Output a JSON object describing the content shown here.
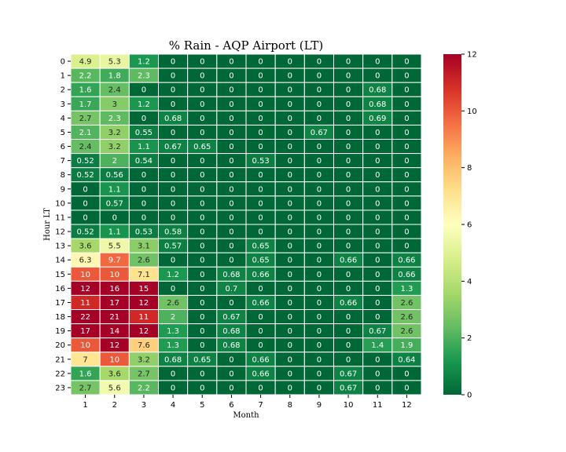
{
  "chart_data": {
    "type": "heatmap",
    "title": "% Rain - AQP Airport (LT)",
    "xlabel": "Month",
    "ylabel": "Hour LT",
    "x_categories": [
      "1",
      "2",
      "3",
      "4",
      "5",
      "6",
      "7",
      "8",
      "9",
      "10",
      "11",
      "12"
    ],
    "y_categories": [
      "0",
      "1",
      "2",
      "3",
      "4",
      "5",
      "6",
      "7",
      "8",
      "9",
      "10",
      "11",
      "12",
      "13",
      "14",
      "15",
      "16",
      "17",
      "18",
      "19",
      "20",
      "21",
      "22",
      "23"
    ],
    "labels": [
      [
        "4.9",
        "5.3",
        "1.2",
        "0",
        "0",
        "0",
        "0",
        "0",
        "0",
        "0",
        "0",
        "0"
      ],
      [
        "2.2",
        "1.8",
        "2.3",
        "0",
        "0",
        "0",
        "0",
        "0",
        "0",
        "0",
        "0",
        "0"
      ],
      [
        "1.6",
        "2.4",
        "0",
        "0",
        "0",
        "0",
        "0",
        "0",
        "0",
        "0",
        "0.68",
        "0"
      ],
      [
        "1.7",
        "3",
        "1.2",
        "0",
        "0",
        "0",
        "0",
        "0",
        "0",
        "0",
        "0.68",
        "0"
      ],
      [
        "2.7",
        "2.3",
        "0",
        "0.68",
        "0",
        "0",
        "0",
        "0",
        "0",
        "0",
        "0.69",
        "0"
      ],
      [
        "2.1",
        "3.2",
        "0.55",
        "0",
        "0",
        "0",
        "0",
        "0",
        "0.67",
        "0",
        "0",
        "0"
      ],
      [
        "2.4",
        "3.2",
        "1.1",
        "0.67",
        "0.65",
        "0",
        "0",
        "0",
        "0",
        "0",
        "0",
        "0"
      ],
      [
        "0.52",
        "2",
        "0.54",
        "0",
        "0",
        "0",
        "0.53",
        "0",
        "0",
        "0",
        "0",
        "0"
      ],
      [
        "0.52",
        "0.56",
        "0",
        "0",
        "0",
        "0",
        "0",
        "0",
        "0",
        "0",
        "0",
        "0"
      ],
      [
        "0",
        "1.1",
        "0",
        "0",
        "0",
        "0",
        "0",
        "0",
        "0",
        "0",
        "0",
        "0"
      ],
      [
        "0",
        "0.57",
        "0",
        "0",
        "0",
        "0",
        "0",
        "0",
        "0",
        "0",
        "0",
        "0"
      ],
      [
        "0",
        "0",
        "0",
        "0",
        "0",
        "0",
        "0",
        "0",
        "0",
        "0",
        "0",
        "0"
      ],
      [
        "0.52",
        "1.1",
        "0.53",
        "0.58",
        "0",
        "0",
        "0",
        "0",
        "0",
        "0",
        "0",
        "0"
      ],
      [
        "3.6",
        "5.5",
        "3.1",
        "0.57",
        "0",
        "0",
        "0.65",
        "0",
        "0",
        "0",
        "0",
        "0"
      ],
      [
        "6.3",
        "9.7",
        "2.6",
        "0",
        "0",
        "0",
        "0.65",
        "0",
        "0",
        "0.66",
        "0",
        "0.66"
      ],
      [
        "10",
        "10",
        "7.1",
        "1.2",
        "0",
        "0.68",
        "0.66",
        "0",
        "0",
        "0",
        "0",
        "0.66"
      ],
      [
        "12",
        "16",
        "15",
        "0",
        "0",
        "0.7",
        "0",
        "0",
        "0",
        "0",
        "0",
        "1.3"
      ],
      [
        "11",
        "17",
        "12",
        "2.6",
        "0",
        "0",
        "0.66",
        "0",
        "0",
        "0.66",
        "0",
        "2.6"
      ],
      [
        "22",
        "21",
        "11",
        "2",
        "0",
        "0.67",
        "0",
        "0",
        "0",
        "0",
        "0",
        "2.6"
      ],
      [
        "17",
        "14",
        "12",
        "1.3",
        "0",
        "0.68",
        "0",
        "0",
        "0",
        "0",
        "0.67",
        "2.6"
      ],
      [
        "10",
        "12",
        "7.6",
        "1.3",
        "0",
        "0.68",
        "0",
        "0",
        "0",
        "0",
        "1.4",
        "1.9"
      ],
      [
        "7",
        "10",
        "3.2",
        "0.68",
        "0.65",
        "0",
        "0.66",
        "0",
        "0",
        "0",
        "0",
        "0.64"
      ],
      [
        "1.6",
        "3.6",
        "2.7",
        "0",
        "0",
        "0",
        "0.66",
        "0",
        "0",
        "0.67",
        "0",
        "0"
      ],
      [
        "2.7",
        "5.6",
        "2.2",
        "0",
        "0",
        "0",
        "0",
        "0",
        "0",
        "0.67",
        "0",
        "0"
      ]
    ],
    "colorbar": {
      "min": 0,
      "max": 12,
      "ticks": [
        "0",
        "2",
        "4",
        "6",
        "8",
        "10",
        "12"
      ],
      "colormap": "RdYlGn_r"
    },
    "grid": false,
    "legend": "right"
  }
}
